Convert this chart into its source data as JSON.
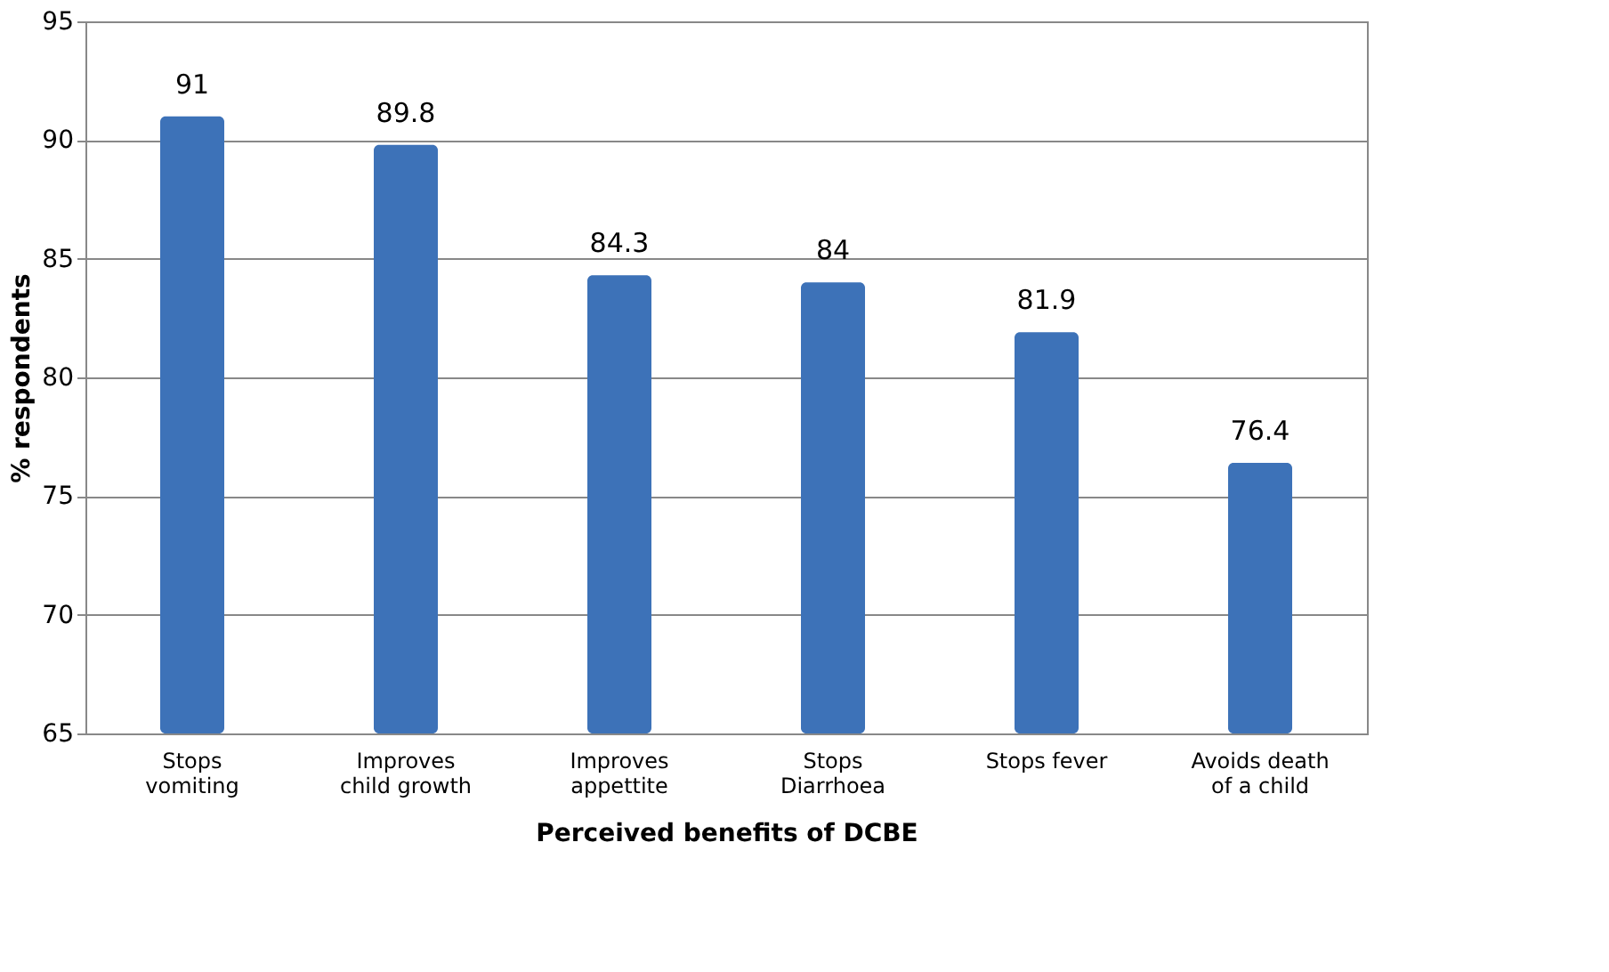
{
  "chart_data": {
    "type": "bar",
    "xlabel": "Perceived benefits of DCBE",
    "ylabel": "% respondents",
    "categories": [
      "Stops vomiting",
      "Improves child growth",
      "Improves appettite",
      "Stops Diarrhoea",
      "Stops fever",
      "Avoids death of a child"
    ],
    "values": [
      91,
      89.8,
      84.3,
      84,
      81.9,
      76.4
    ],
    "color": "#3d72b8",
    "ylim": [
      65,
      95
    ],
    "yticks": [
      65,
      70,
      75,
      80,
      85,
      90,
      95
    ],
    "grid": "y",
    "data_labels": true
  }
}
